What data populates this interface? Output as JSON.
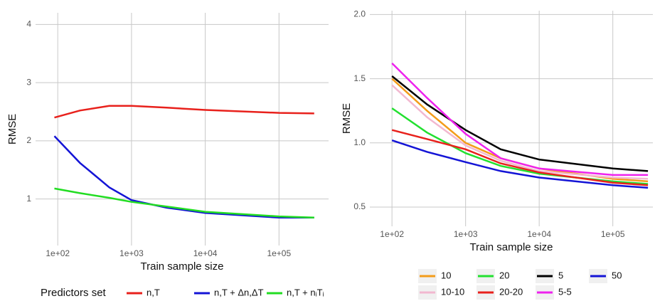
{
  "chart_data": [
    {
      "type": "line",
      "x_label": "Train sample size",
      "y_label": "RMSE",
      "log_x": true,
      "grid": true,
      "legend_title": "Predictors set",
      "legend": "bottom",
      "x": [
        90,
        200,
        500,
        1000,
        3000,
        10000,
        100000,
        300000
      ],
      "xlim": [
        50,
        470000
      ],
      "ylim": [
        0.2,
        4.2
      ],
      "xticks": [
        {
          "value": 100,
          "label": "1e+02"
        },
        {
          "value": 1000,
          "label": "1e+03"
        },
        {
          "value": 10000,
          "label": "1e+04"
        },
        {
          "value": 100000,
          "label": "1e+05"
        }
      ],
      "yticks": [
        1,
        2,
        3,
        4
      ],
      "series": [
        {
          "name": "n,T",
          "color": "#e8211c",
          "values": [
            2.4,
            2.52,
            2.6,
            2.6,
            2.57,
            2.53,
            2.48,
            2.47
          ]
        },
        {
          "name": "n,T + Δn,ΔT",
          "color": "#1414d6",
          "values": [
            2.08,
            1.62,
            1.2,
            0.98,
            0.85,
            0.76,
            0.68,
            0.68
          ]
        },
        {
          "name": "n,T + nᵢTᵢ",
          "color": "#22dd22",
          "values": [
            1.18,
            1.1,
            1.02,
            0.95,
            0.87,
            0.78,
            0.7,
            0.68
          ]
        }
      ]
    },
    {
      "type": "line",
      "x_label": "Train sample size",
      "y_label": "RMSE",
      "log_x": true,
      "grid": true,
      "legend": "bottom",
      "x": [
        100,
        300,
        1000,
        3000,
        10000,
        100000,
        300000
      ],
      "xlim": [
        50,
        350000
      ],
      "ylim": [
        0.35,
        2.03
      ],
      "xticks": [
        {
          "value": 100,
          "label": "1e+02"
        },
        {
          "value": 1000,
          "label": "1e+03"
        },
        {
          "value": 10000,
          "label": "1e+04"
        },
        {
          "value": 100000,
          "label": "1e+05"
        }
      ],
      "yticks": [
        0.5,
        {
          "value": 1,
          "label": "1.0"
        },
        1.5,
        {
          "value": 2,
          "label": "2.0"
        }
      ],
      "series": [
        {
          "name": "10",
          "color": "#f39c1a",
          "values": [
            1.5,
            1.25,
            1.0,
            0.88,
            0.8,
            0.72,
            0.7
          ]
        },
        {
          "name": "10-10",
          "color": "#f2b8d0",
          "values": [
            1.45,
            1.2,
            0.98,
            0.86,
            0.78,
            0.73,
            0.72
          ]
        },
        {
          "name": "20",
          "color": "#22e030",
          "values": [
            1.27,
            1.08,
            0.92,
            0.82,
            0.76,
            0.7,
            0.68
          ]
        },
        {
          "name": "20-20",
          "color": "#e8211c",
          "values": [
            1.1,
            1.03,
            0.95,
            0.84,
            0.77,
            0.69,
            0.67
          ]
        },
        {
          "name": "5",
          "color": "#000000",
          "values": [
            1.52,
            1.3,
            1.1,
            0.95,
            0.87,
            0.8,
            0.78
          ]
        },
        {
          "name": "5-5",
          "color": "#ee22ee",
          "values": [
            1.62,
            1.35,
            1.07,
            0.88,
            0.8,
            0.75,
            0.75
          ]
        },
        {
          "name": "50",
          "color": "#1414d6",
          "values": [
            1.02,
            0.93,
            0.85,
            0.78,
            0.73,
            0.67,
            0.65
          ]
        }
      ]
    }
  ]
}
